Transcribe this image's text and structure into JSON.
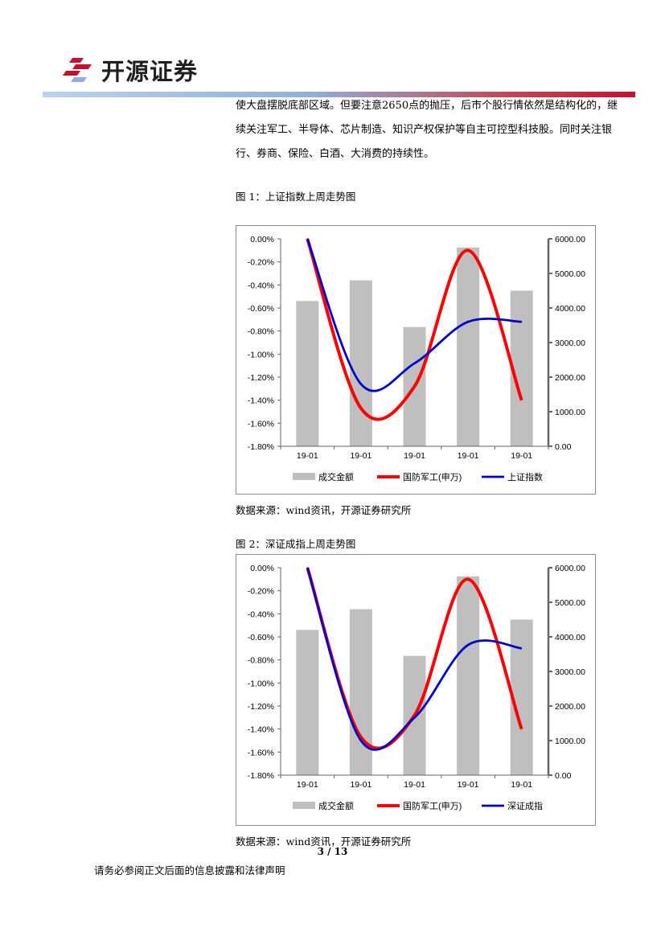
{
  "header": {
    "logo_text": "开源证券",
    "accent_color": "#c8102e"
  },
  "body": {
    "paragraph": "使大盘摆脱底部区域。但要注意2650点的抛压，后市个股行情依然是结构化的，继续关注军工、半导体、芯片制造、知识产权保护等自主可控型科技股。同时关注银行、券商、保险、白酒、大消费的持续性。"
  },
  "figures": [
    {
      "caption": "图 1：上证指数上周走势图",
      "source": "数据来源：wind资讯，开源证券研究所"
    },
    {
      "caption": "图 2：深证成指上周走势图",
      "source": "数据来源：wind资讯，开源证券研究所"
    }
  ],
  "footer": {
    "page_number": "3 / 13",
    "disclaimer": "请务必参阅正文后面的信息披露和法律声明"
  },
  "chart_data": [
    {
      "type": "bar",
      "categories": [
        "19-01",
        "19-01",
        "19-01",
        "19-01",
        "19-01"
      ],
      "y_left": {
        "lim": [
          -1.8,
          0
        ],
        "ticks": [
          "0.00%",
          "-0.20%",
          "-0.40%",
          "-0.60%",
          "-0.80%",
          "-1.00%",
          "-1.20%",
          "-1.40%",
          "-1.60%",
          "-1.80%"
        ]
      },
      "y_right": {
        "lim": [
          0,
          6000
        ],
        "ticks": [
          "6000.00",
          "5000.00",
          "4000.00",
          "3000.00",
          "2000.00",
          "1000.00",
          "0.00"
        ]
      },
      "series": [
        {
          "name": "成交金额",
          "kind": "bar",
          "axis": "right",
          "color": "#bfbfbf",
          "values": [
            4200,
            4800,
            3450,
            5750,
            4500
          ]
        },
        {
          "name": "国防军工(申万)",
          "kind": "line",
          "axis": "left",
          "color": "#ff0000",
          "values": [
            0.0,
            -1.47,
            -1.28,
            -0.1,
            -1.4
          ]
        },
        {
          "name": "上证指数",
          "kind": "line",
          "axis": "left",
          "color": "#0000cc",
          "values": [
            0.0,
            -1.26,
            -1.08,
            -0.72,
            -0.72
          ]
        }
      ],
      "legend": "bottom",
      "grid": false
    },
    {
      "type": "bar",
      "categories": [
        "19-01",
        "19-01",
        "19-01",
        "19-01",
        "19-01"
      ],
      "y_left": {
        "lim": [
          -1.8,
          0
        ],
        "ticks": [
          "0.00%",
          "-0.20%",
          "-0.40%",
          "-0.60%",
          "-0.80%",
          "-1.00%",
          "-1.20%",
          "-1.40%",
          "-1.60%",
          "-1.80%"
        ]
      },
      "y_right": {
        "lim": [
          0,
          6000
        ],
        "ticks": [
          "6000.00",
          "5000.00",
          "4000.00",
          "3000.00",
          "2000.00",
          "1000.00",
          "0.00"
        ]
      },
      "series": [
        {
          "name": "成交金额",
          "kind": "bar",
          "axis": "right",
          "color": "#bfbfbf",
          "values": [
            4200,
            4800,
            3450,
            5750,
            4500
          ]
        },
        {
          "name": "国防军工(申万)",
          "kind": "line",
          "axis": "left",
          "color": "#ff0000",
          "values": [
            0.0,
            -1.47,
            -1.28,
            -0.1,
            -1.4
          ]
        },
        {
          "name": "深证成指",
          "kind": "line",
          "axis": "left",
          "color": "#0000cc",
          "values": [
            0.0,
            -1.5,
            -1.3,
            -0.67,
            -0.7
          ]
        }
      ],
      "legend": "bottom",
      "grid": false
    }
  ]
}
